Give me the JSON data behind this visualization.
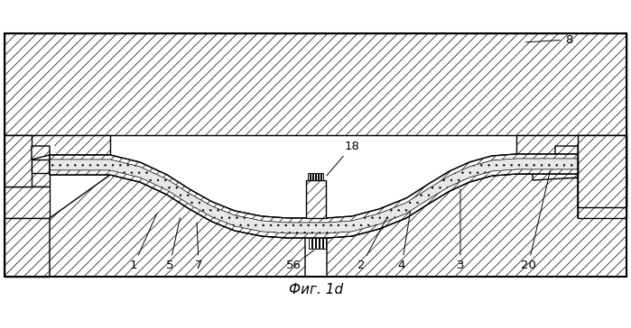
{
  "figure_label": "Фиг. 1d",
  "ann_8": "8",
  "ann_18": "18",
  "ann_1": "1",
  "ann_5": "5",
  "ann_7": "7",
  "ann_56": "56",
  "ann_2": "2",
  "ann_4": "4",
  "ann_3": "3",
  "ann_20": "20",
  "bg": "#ffffff",
  "lc": "#000000",
  "fig_width": 6.99,
  "fig_height": 3.64,
  "dpi": 100
}
